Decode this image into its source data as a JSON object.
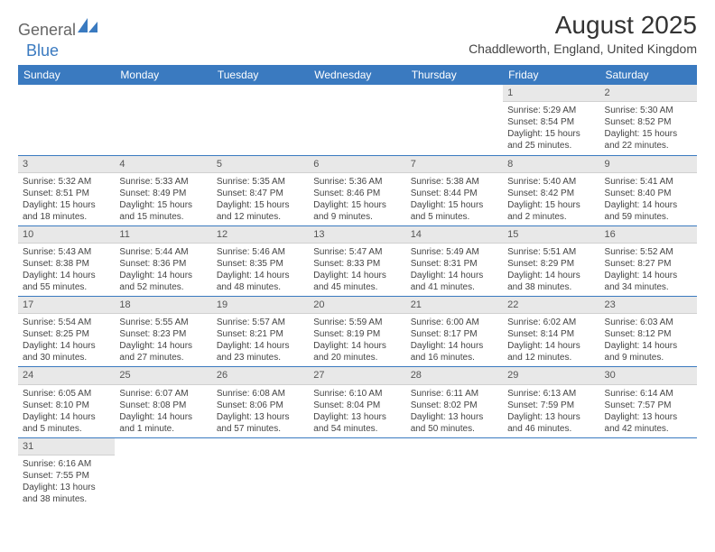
{
  "logo": {
    "text1": "General",
    "text2": "Blue"
  },
  "title": "August 2025",
  "location": "Chaddleworth, England, United Kingdom",
  "colors": {
    "header_bg": "#3a7ac0",
    "header_fg": "#ffffff",
    "daynum_bg": "#e8e8e8",
    "row_divider": "#3a7ac0",
    "logo_accent": "#3a7ac0"
  },
  "weekdays": [
    "Sunday",
    "Monday",
    "Tuesday",
    "Wednesday",
    "Thursday",
    "Friday",
    "Saturday"
  ],
  "weeks": [
    [
      null,
      null,
      null,
      null,
      null,
      {
        "n": "1",
        "sr": "Sunrise: 5:29 AM",
        "ss": "Sunset: 8:54 PM",
        "d1": "Daylight: 15 hours",
        "d2": "and 25 minutes."
      },
      {
        "n": "2",
        "sr": "Sunrise: 5:30 AM",
        "ss": "Sunset: 8:52 PM",
        "d1": "Daylight: 15 hours",
        "d2": "and 22 minutes."
      }
    ],
    [
      {
        "n": "3",
        "sr": "Sunrise: 5:32 AM",
        "ss": "Sunset: 8:51 PM",
        "d1": "Daylight: 15 hours",
        "d2": "and 18 minutes."
      },
      {
        "n": "4",
        "sr": "Sunrise: 5:33 AM",
        "ss": "Sunset: 8:49 PM",
        "d1": "Daylight: 15 hours",
        "d2": "and 15 minutes."
      },
      {
        "n": "5",
        "sr": "Sunrise: 5:35 AM",
        "ss": "Sunset: 8:47 PM",
        "d1": "Daylight: 15 hours",
        "d2": "and 12 minutes."
      },
      {
        "n": "6",
        "sr": "Sunrise: 5:36 AM",
        "ss": "Sunset: 8:46 PM",
        "d1": "Daylight: 15 hours",
        "d2": "and 9 minutes."
      },
      {
        "n": "7",
        "sr": "Sunrise: 5:38 AM",
        "ss": "Sunset: 8:44 PM",
        "d1": "Daylight: 15 hours",
        "d2": "and 5 minutes."
      },
      {
        "n": "8",
        "sr": "Sunrise: 5:40 AM",
        "ss": "Sunset: 8:42 PM",
        "d1": "Daylight: 15 hours",
        "d2": "and 2 minutes."
      },
      {
        "n": "9",
        "sr": "Sunrise: 5:41 AM",
        "ss": "Sunset: 8:40 PM",
        "d1": "Daylight: 14 hours",
        "d2": "and 59 minutes."
      }
    ],
    [
      {
        "n": "10",
        "sr": "Sunrise: 5:43 AM",
        "ss": "Sunset: 8:38 PM",
        "d1": "Daylight: 14 hours",
        "d2": "and 55 minutes."
      },
      {
        "n": "11",
        "sr": "Sunrise: 5:44 AM",
        "ss": "Sunset: 8:36 PM",
        "d1": "Daylight: 14 hours",
        "d2": "and 52 minutes."
      },
      {
        "n": "12",
        "sr": "Sunrise: 5:46 AM",
        "ss": "Sunset: 8:35 PM",
        "d1": "Daylight: 14 hours",
        "d2": "and 48 minutes."
      },
      {
        "n": "13",
        "sr": "Sunrise: 5:47 AM",
        "ss": "Sunset: 8:33 PM",
        "d1": "Daylight: 14 hours",
        "d2": "and 45 minutes."
      },
      {
        "n": "14",
        "sr": "Sunrise: 5:49 AM",
        "ss": "Sunset: 8:31 PM",
        "d1": "Daylight: 14 hours",
        "d2": "and 41 minutes."
      },
      {
        "n": "15",
        "sr": "Sunrise: 5:51 AM",
        "ss": "Sunset: 8:29 PM",
        "d1": "Daylight: 14 hours",
        "d2": "and 38 minutes."
      },
      {
        "n": "16",
        "sr": "Sunrise: 5:52 AM",
        "ss": "Sunset: 8:27 PM",
        "d1": "Daylight: 14 hours",
        "d2": "and 34 minutes."
      }
    ],
    [
      {
        "n": "17",
        "sr": "Sunrise: 5:54 AM",
        "ss": "Sunset: 8:25 PM",
        "d1": "Daylight: 14 hours",
        "d2": "and 30 minutes."
      },
      {
        "n": "18",
        "sr": "Sunrise: 5:55 AM",
        "ss": "Sunset: 8:23 PM",
        "d1": "Daylight: 14 hours",
        "d2": "and 27 minutes."
      },
      {
        "n": "19",
        "sr": "Sunrise: 5:57 AM",
        "ss": "Sunset: 8:21 PM",
        "d1": "Daylight: 14 hours",
        "d2": "and 23 minutes."
      },
      {
        "n": "20",
        "sr": "Sunrise: 5:59 AM",
        "ss": "Sunset: 8:19 PM",
        "d1": "Daylight: 14 hours",
        "d2": "and 20 minutes."
      },
      {
        "n": "21",
        "sr": "Sunrise: 6:00 AM",
        "ss": "Sunset: 8:17 PM",
        "d1": "Daylight: 14 hours",
        "d2": "and 16 minutes."
      },
      {
        "n": "22",
        "sr": "Sunrise: 6:02 AM",
        "ss": "Sunset: 8:14 PM",
        "d1": "Daylight: 14 hours",
        "d2": "and 12 minutes."
      },
      {
        "n": "23",
        "sr": "Sunrise: 6:03 AM",
        "ss": "Sunset: 8:12 PM",
        "d1": "Daylight: 14 hours",
        "d2": "and 9 minutes."
      }
    ],
    [
      {
        "n": "24",
        "sr": "Sunrise: 6:05 AM",
        "ss": "Sunset: 8:10 PM",
        "d1": "Daylight: 14 hours",
        "d2": "and 5 minutes."
      },
      {
        "n": "25",
        "sr": "Sunrise: 6:07 AM",
        "ss": "Sunset: 8:08 PM",
        "d1": "Daylight: 14 hours",
        "d2": "and 1 minute."
      },
      {
        "n": "26",
        "sr": "Sunrise: 6:08 AM",
        "ss": "Sunset: 8:06 PM",
        "d1": "Daylight: 13 hours",
        "d2": "and 57 minutes."
      },
      {
        "n": "27",
        "sr": "Sunrise: 6:10 AM",
        "ss": "Sunset: 8:04 PM",
        "d1": "Daylight: 13 hours",
        "d2": "and 54 minutes."
      },
      {
        "n": "28",
        "sr": "Sunrise: 6:11 AM",
        "ss": "Sunset: 8:02 PM",
        "d1": "Daylight: 13 hours",
        "d2": "and 50 minutes."
      },
      {
        "n": "29",
        "sr": "Sunrise: 6:13 AM",
        "ss": "Sunset: 7:59 PM",
        "d1": "Daylight: 13 hours",
        "d2": "and 46 minutes."
      },
      {
        "n": "30",
        "sr": "Sunrise: 6:14 AM",
        "ss": "Sunset: 7:57 PM",
        "d1": "Daylight: 13 hours",
        "d2": "and 42 minutes."
      }
    ],
    [
      {
        "n": "31",
        "sr": "Sunrise: 6:16 AM",
        "ss": "Sunset: 7:55 PM",
        "d1": "Daylight: 13 hours",
        "d2": "and 38 minutes."
      },
      null,
      null,
      null,
      null,
      null,
      null
    ]
  ]
}
